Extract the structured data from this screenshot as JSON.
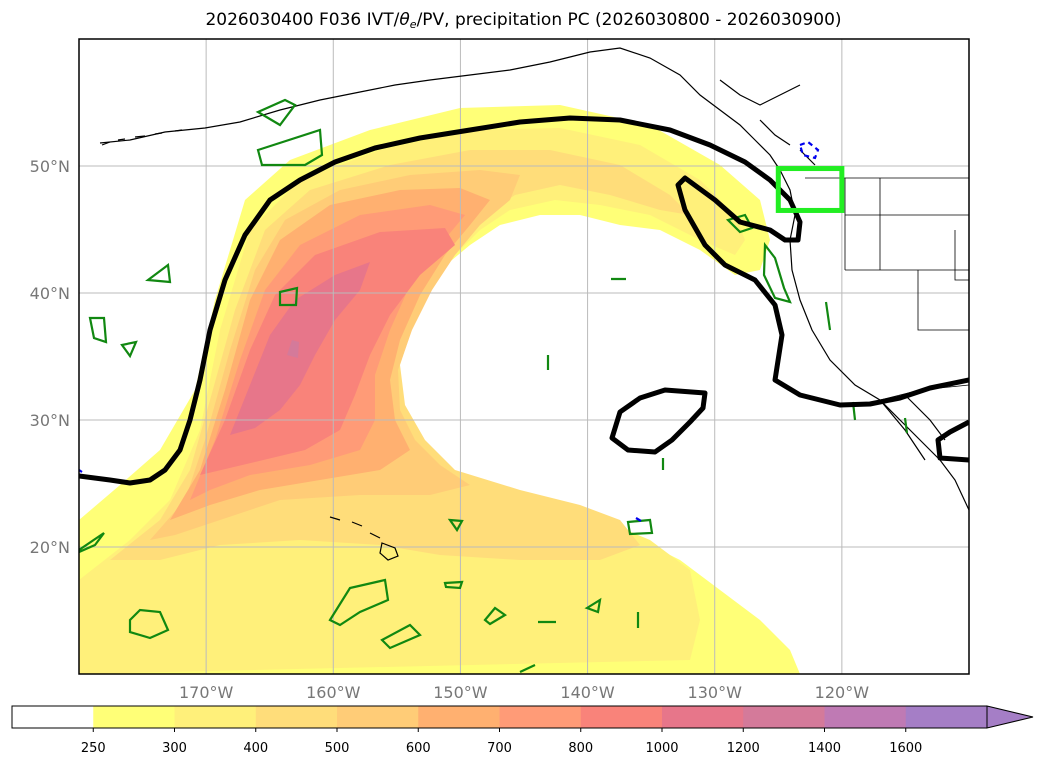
{
  "title": {
    "prefix": "2026030400 F036 IVT/",
    "theta": "θ",
    "theta_sub": "e",
    "suffix": "/PV, precipitation PC (2026030800 - 2026030900)"
  },
  "map": {
    "lon_range": [
      -180,
      -110
    ],
    "lat_range": [
      10,
      60
    ],
    "grid": true,
    "lat_ticks": [
      {
        "lat": 50,
        "label": "50°N"
      },
      {
        "lat": 40,
        "label": "40°N"
      },
      {
        "lat": 30,
        "label": "30°N"
      },
      {
        "lat": 20,
        "label": "20°N"
      }
    ],
    "lon_ticks": [
      {
        "lon": -170,
        "label": "170°W"
      },
      {
        "lon": -160,
        "label": "160°W"
      },
      {
        "lon": -150,
        "label": "150°W"
      },
      {
        "lon": -140,
        "label": "140°W"
      },
      {
        "lon": -130,
        "label": "130°W"
      },
      {
        "lon": -120,
        "label": "120°W"
      }
    ],
    "highlight_box": {
      "lon": [
        -125,
        -120
      ],
      "lat": [
        46.5,
        49.8
      ],
      "color": "#22ee22"
    }
  },
  "colorbar": {
    "levels": [
      "250",
      "300",
      "400",
      "500",
      "600",
      "700",
      "800",
      "1000",
      "1200",
      "1400",
      "1600"
    ],
    "colors": [
      "#ffffff",
      "#ffff77",
      "#fff07a",
      "#ffdd7a",
      "#ffcc77",
      "#ffb070",
      "#ff9b77",
      "#f9837a",
      "#e7768a",
      "#d47a9a",
      "#bf7ab4",
      "#a57ec6"
    ],
    "extend": "max"
  }
}
